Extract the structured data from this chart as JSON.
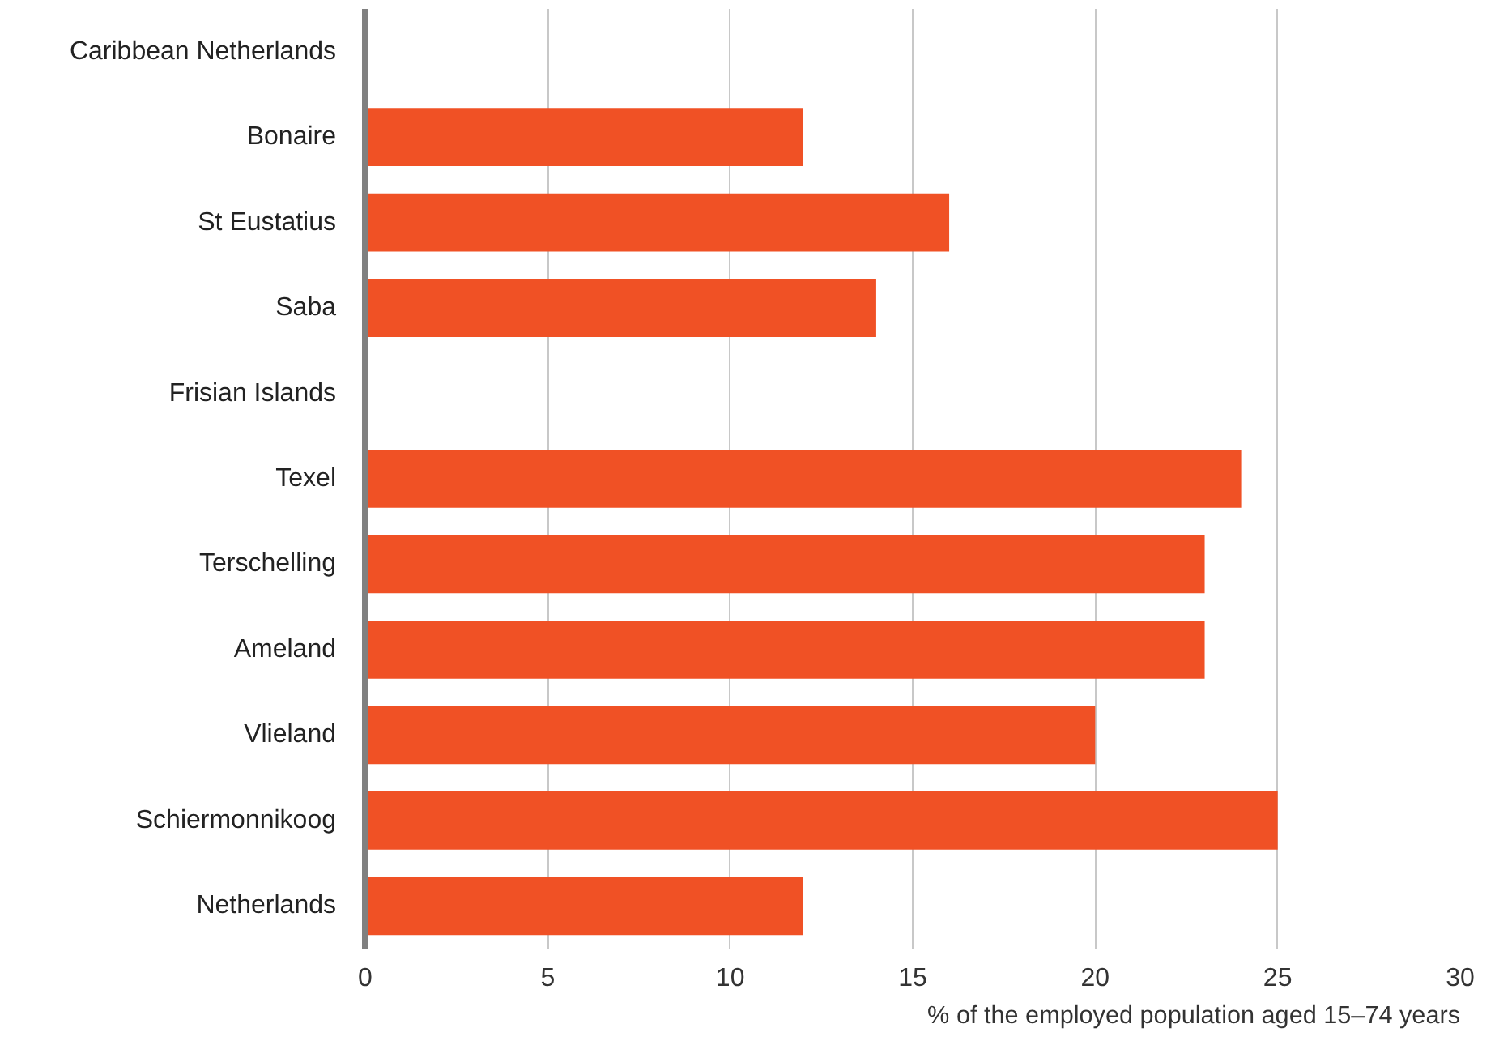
{
  "chart_data": {
    "type": "bar",
    "orientation": "horizontal",
    "categories": [
      "Caribbean Netherlands",
      "Bonaire",
      "St Eustatius",
      "Saba",
      "Frisian Islands",
      "Texel",
      "Terschelling",
      "Ameland",
      "Vlieland",
      "Schiermonnikoog",
      "Netherlands"
    ],
    "values": [
      null,
      12,
      16,
      14,
      null,
      24,
      23,
      23,
      20,
      25,
      12
    ],
    "color": "#f05125",
    "xlabel": "% of the employed population aged 15–74 years",
    "xlim": [
      0,
      30
    ],
    "xticks": [
      0,
      5,
      10,
      15,
      20,
      25,
      30
    ],
    "grid": "x"
  }
}
